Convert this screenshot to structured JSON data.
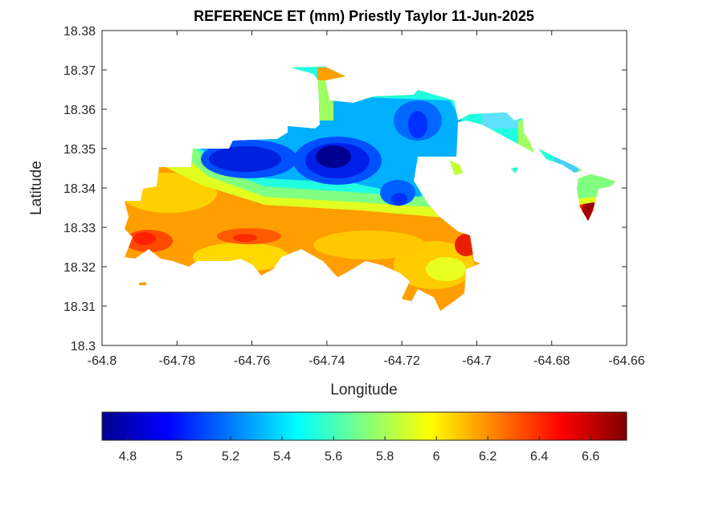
{
  "chart_data": {
    "type": "heatmap",
    "subtype": "filled-contour-map",
    "title": "REFERENCE ET (mm) Priestly Taylor 11-Jun-2025",
    "xlabel": "Longitude",
    "ylabel": "Latitude",
    "xlim": [
      -64.8,
      -64.66
    ],
    "ylim": [
      18.3,
      18.38
    ],
    "xticks": [
      "-64.8",
      "-64.78",
      "-64.76",
      "-64.74",
      "-64.72",
      "-64.7",
      "-64.68",
      "-64.66"
    ],
    "yticks": [
      "18.3",
      "18.31",
      "18.32",
      "18.33",
      "18.34",
      "18.35",
      "18.36",
      "18.37",
      "18.38"
    ],
    "grid": false,
    "colormap": "jet",
    "colorbar": {
      "location": "bottom",
      "clim": [
        4.7,
        6.74
      ],
      "ticks": [
        "4.8",
        "5",
        "5.2",
        "5.4",
        "5.6",
        "5.8",
        "6",
        "6.2",
        "6.4",
        "6.6"
      ]
    },
    "features": [
      {
        "name": "min-center",
        "lon": -64.739,
        "lat": 18.348,
        "value": 4.75
      },
      {
        "name": "west-low",
        "lon": -64.763,
        "lat": 18.348,
        "value": 4.9
      },
      {
        "name": "ne-low",
        "lon": -64.712,
        "lat": 18.356,
        "value": 5.0
      },
      {
        "name": "se-low",
        "lon": -64.718,
        "lat": 18.337,
        "value": 5.0
      },
      {
        "name": "sw-high",
        "lon": -64.788,
        "lat": 18.328,
        "value": 6.45
      },
      {
        "name": "s-high",
        "lon": -64.758,
        "lat": 18.327,
        "value": 6.4
      },
      {
        "name": "se-high",
        "lon": -64.704,
        "lat": 18.326,
        "value": 6.6
      },
      {
        "name": "east-high",
        "lon": -64.67,
        "lat": 18.335,
        "value": 6.7
      }
    ]
  }
}
